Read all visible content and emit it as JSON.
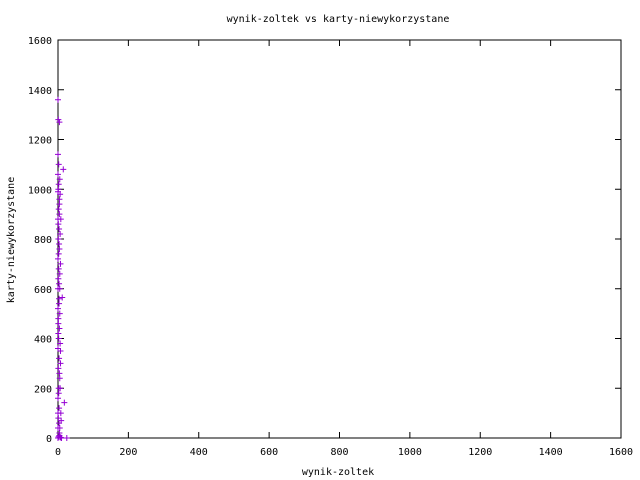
{
  "chart_data": {
    "type": "scatter",
    "title": "wynik-zoltek vs karty-niewykorzystane",
    "xlabel": "wynik-zoltek",
    "ylabel": "karty-niewykorzystane",
    "xlim": [
      0,
      1600
    ],
    "ylim": [
      0,
      1600
    ],
    "xticks": [
      0,
      200,
      400,
      600,
      800,
      1000,
      1200,
      1400,
      1600
    ],
    "yticks": [
      0,
      200,
      400,
      600,
      800,
      1000,
      1200,
      1400,
      1600
    ],
    "grid": false,
    "legend": "none",
    "marker": "plus",
    "series": [
      {
        "color": "#9400d3",
        "points": [
          [
            0,
            0
          ],
          [
            2,
            5
          ],
          [
            4,
            10
          ],
          [
            6,
            3
          ],
          [
            8,
            2
          ],
          [
            10,
            0
          ],
          [
            25,
            0
          ],
          [
            18,
            142
          ],
          [
            0,
            40
          ],
          [
            1,
            80
          ],
          [
            3,
            120
          ],
          [
            0,
            160
          ],
          [
            2,
            200
          ],
          [
            5,
            240
          ],
          [
            1,
            280
          ],
          [
            3,
            320
          ],
          [
            0,
            360
          ],
          [
            7,
            350
          ],
          [
            2,
            400
          ],
          [
            4,
            440
          ],
          [
            1,
            480
          ],
          [
            0,
            520
          ],
          [
            3,
            560
          ],
          [
            12,
            565
          ],
          [
            5,
            600
          ],
          [
            1,
            640
          ],
          [
            2,
            680
          ],
          [
            0,
            720
          ],
          [
            4,
            760
          ],
          [
            1,
            800
          ],
          [
            3,
            840
          ],
          [
            0,
            880
          ],
          [
            2,
            920
          ],
          [
            4,
            960
          ],
          [
            0,
            990
          ],
          [
            1,
            1000
          ],
          [
            5,
            1040
          ],
          [
            0,
            1060
          ],
          [
            15,
            1080
          ],
          [
            2,
            1100
          ],
          [
            0,
            1140
          ],
          [
            1,
            1280
          ],
          [
            4,
            1270
          ],
          [
            0,
            1360
          ],
          [
            6,
            200
          ],
          [
            8,
            100
          ],
          [
            3,
            60
          ],
          [
            5,
            500
          ],
          [
            7,
            700
          ],
          [
            2,
            1020
          ],
          [
            4,
            900
          ],
          [
            6,
            820
          ],
          [
            3,
            620
          ],
          [
            1,
            420
          ],
          [
            7,
            300
          ],
          [
            2,
            180
          ],
          [
            0,
            100
          ],
          [
            4,
            260
          ],
          [
            6,
            380
          ],
          [
            1,
            460
          ],
          [
            3,
            540
          ],
          [
            5,
            660
          ],
          [
            2,
            740
          ],
          [
            0,
            600
          ],
          [
            1,
            860
          ],
          [
            4,
            940
          ],
          [
            6,
            980
          ],
          [
            8,
            880
          ],
          [
            3,
            780
          ],
          [
            5,
            40
          ],
          [
            9,
            70
          ],
          [
            4,
            20
          ]
        ]
      }
    ]
  }
}
